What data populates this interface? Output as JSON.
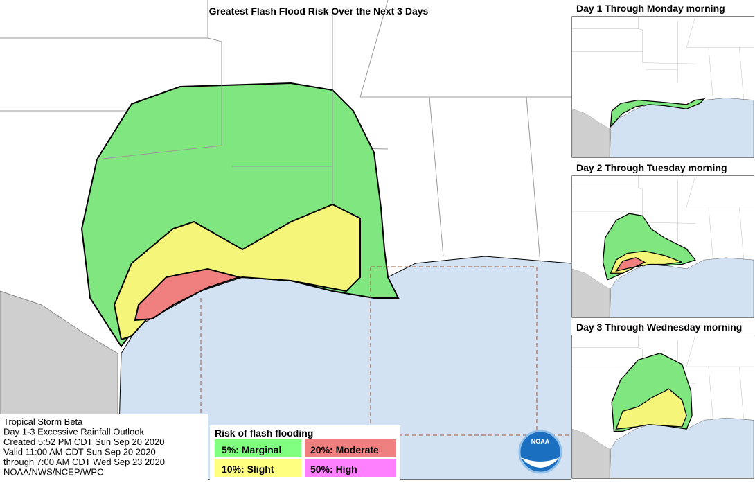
{
  "header": {
    "title": "Greatest Flash Flood Risk Over the Next 3 Days"
  },
  "panels": [
    {
      "title": "Day 1 Through Monday morning"
    },
    {
      "title": "Day 2 Through Tuesday morning"
    },
    {
      "title": "Day 3 Through Wednesday morning"
    }
  ],
  "info": {
    "lines": [
      "Tropical Storm Beta",
      "Day 1-3 Excessive Rainfall Outlook",
      "Created 5:52 PM CDT Sun Sep 20 2020",
      "Valid 11:00 AM CDT Sun Sep 20 2020",
      "through 7:00 AM CDT Wed Sep 23 2020",
      "NOAA/NWS/NCEP/WPC"
    ]
  },
  "legend": {
    "title": "Risk of flash flooding",
    "items": [
      "5%: Marginal",
      "20%: Moderate",
      "10%: Slight",
      "50%: High"
    ]
  },
  "logo": {
    "text": "NOAA"
  }
}
